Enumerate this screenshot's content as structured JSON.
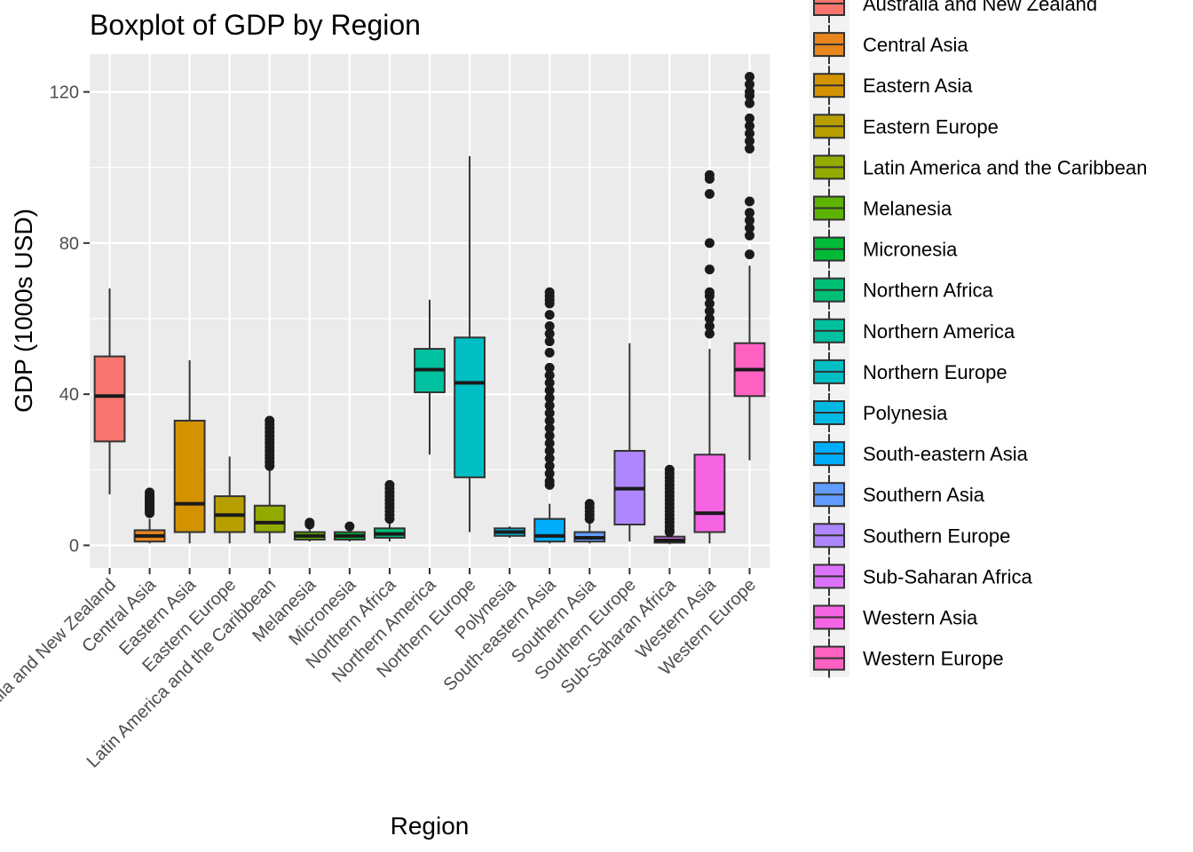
{
  "chart_data": {
    "type": "boxplot",
    "title": "Boxplot of GDP by Region",
    "xlabel": "Region",
    "ylabel": "GDP (1000s USD)",
    "ylim": [
      -6,
      130
    ],
    "yticks": [
      0,
      40,
      80,
      120
    ],
    "grid": true,
    "legend_position": "right",
    "categories": [
      "Australia and New Zealand",
      "Central Asia",
      "Eastern Asia",
      "Eastern Europe",
      "Latin America and the Caribbean",
      "Melanesia",
      "Micronesia",
      "Northern Africa",
      "Northern America",
      "Northern Europe",
      "Polynesia",
      "South-eastern Asia",
      "Southern Asia",
      "Southern Europe",
      "Sub-Saharan Africa",
      "Western Asia",
      "Western Europe"
    ],
    "colors": [
      "#F8766D",
      "#E8851E",
      "#D39200",
      "#B79F00",
      "#93AA00",
      "#5EB300",
      "#00BA38",
      "#00BF74",
      "#00C19F",
      "#00BFC4",
      "#00B9E3",
      "#00ADFA",
      "#619CFF",
      "#AE87FF",
      "#DB72FB",
      "#F564E3",
      "#FF61C3"
    ],
    "boxes": [
      {
        "min": 13.5,
        "q1": 27.5,
        "median": 39.5,
        "q3": 50,
        "max": 68,
        "outliers": []
      },
      {
        "min": 0.5,
        "q1": 1,
        "median": 2.5,
        "q3": 4,
        "max": 7,
        "outliers": [
          8.5,
          9,
          9.5,
          10,
          10.5,
          11,
          11.5,
          12,
          12.5,
          13,
          13.5,
          14
        ]
      },
      {
        "min": 0.5,
        "q1": 3.5,
        "median": 11,
        "q3": 33,
        "max": 49,
        "outliers": []
      },
      {
        "min": 0.5,
        "q1": 3.5,
        "median": 8,
        "q3": 13,
        "max": 23.5,
        "outliers": []
      },
      {
        "min": 0.5,
        "q1": 3.5,
        "median": 6,
        "q3": 10.5,
        "max": 20,
        "outliers": [
          21,
          22,
          23,
          24,
          25,
          26,
          27,
          28,
          29,
          30,
          31,
          32,
          33
        ]
      },
      {
        "min": 1,
        "q1": 1.5,
        "median": 2.5,
        "q3": 3.5,
        "max": 4.5,
        "outliers": [
          5.5,
          6
        ]
      },
      {
        "min": 1,
        "q1": 1.5,
        "median": 2.5,
        "q3": 3.5,
        "max": 4,
        "outliers": [
          5
        ]
      },
      {
        "min": 1,
        "q1": 2,
        "median": 3,
        "q3": 4.5,
        "max": 6.5,
        "outliers": [
          7,
          8,
          9,
          10,
          11,
          12,
          13,
          14,
          15,
          16
        ]
      },
      {
        "min": 24,
        "q1": 40.5,
        "median": 46.5,
        "q3": 52,
        "max": 65,
        "outliers": []
      },
      {
        "min": 3.5,
        "q1": 18,
        "median": 43,
        "q3": 55,
        "max": 103,
        "outliers": []
      },
      {
        "min": 2,
        "q1": 2.5,
        "median": 3.5,
        "q3": 4.5,
        "max": 5,
        "outliers": []
      },
      {
        "min": 0.5,
        "q1": 1,
        "median": 2.5,
        "q3": 7,
        "max": 11,
        "outliers": [
          16,
          17,
          19,
          21,
          23,
          25,
          27,
          29,
          31,
          33,
          35,
          37,
          39,
          41,
          43,
          45,
          47,
          51,
          54,
          56,
          58,
          61,
          64,
          65,
          66,
          67
        ]
      },
      {
        "min": 0.5,
        "q1": 1,
        "median": 2,
        "q3": 3.5,
        "max": 6.5,
        "outliers": [
          7,
          8,
          9,
          10,
          11
        ]
      },
      {
        "min": 1,
        "q1": 5.5,
        "median": 15,
        "q3": 25,
        "max": 53.5,
        "outliers": []
      },
      {
        "min": 0.3,
        "q1": 0.7,
        "median": 1.3,
        "q3": 2.3,
        "max": 3,
        "outliers": [
          3.5,
          4,
          5,
          6,
          7,
          8,
          9,
          10,
          11,
          12,
          13,
          14,
          15,
          16,
          17,
          18,
          19,
          20
        ]
      },
      {
        "min": 0.5,
        "q1": 3.5,
        "median": 8.5,
        "q3": 24,
        "max": 52,
        "outliers": [
          56,
          58,
          60,
          62,
          64,
          66,
          67,
          73,
          80,
          93,
          97,
          98
        ]
      },
      {
        "min": 22.5,
        "q1": 39.5,
        "median": 46.5,
        "q3": 53.5,
        "max": 74,
        "outliers": [
          77,
          82,
          84,
          86,
          88,
          91,
          105,
          107,
          109,
          111,
          113,
          117,
          119,
          120,
          122,
          124
        ]
      }
    ]
  }
}
